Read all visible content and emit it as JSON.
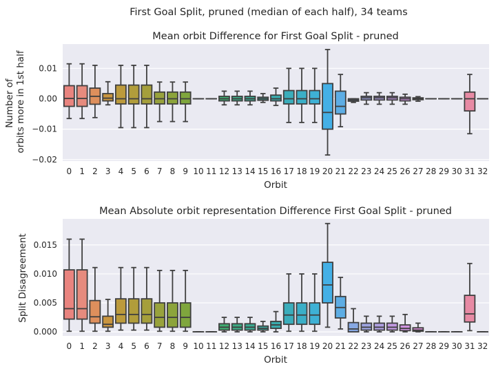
{
  "figure": {
    "suptitle": "First Goal Split, pruned (median of each half), 34 teams"
  },
  "palette": [
    "#e9847f",
    "#e2887a",
    "#d98e58",
    "#c5953f",
    "#b89a3c",
    "#ac9f3b",
    "#a09e3f",
    "#959f3d",
    "#8aa43b",
    "#7fa63d",
    "#67a945",
    "#4aac58",
    "#3aac72",
    "#3aaa85",
    "#3aaa95",
    "#3aa9a4",
    "#3bac ",
    "#3aadb8",
    "#3aaec3",
    "#3bb2d3",
    "#41b1e6",
    "#5eaee4",
    "#8aa7e2",
    "#a0a4e1",
    "#b39fe1",
    "#c49ae2",
    "#d192e1",
    "#dd8bde",
    "#e386ce",
    "#e38abf"
  ],
  "chart_data": [
    {
      "type": "box",
      "title": "Mean orbit Difference for First Goal Split - pruned",
      "xlabel": "Orbit",
      "ylabel": "Number of\norbits more in 1st half",
      "ylim": [
        -0.0205,
        0.018
      ],
      "yticks": [
        0.01,
        0.0,
        -0.01,
        -0.02
      ],
      "yticklabels": [
        "0.01",
        "0.00",
        "−0.01",
        "−0.02"
      ],
      "grid": true,
      "categories": [
        "0",
        "1",
        "2",
        "3",
        "4",
        "5",
        "6",
        "7",
        "8",
        "9",
        "10",
        "11",
        "12",
        "13",
        "14",
        "15",
        "16",
        "17",
        "18",
        "19",
        "20",
        "21",
        "22",
        "23",
        "24",
        "25",
        "26",
        "27",
        "28",
        "29",
        "30",
        "31",
        "32"
      ],
      "boxes": [
        {
          "wlo": -0.0065,
          "q1": -0.0025,
          "med": 0.0001,
          "q3": 0.0043,
          "whi": 0.0115
        },
        {
          "wlo": -0.0065,
          "q1": -0.0025,
          "med": 0.0001,
          "q3": 0.0043,
          "whi": 0.0115
        },
        {
          "wlo": -0.0062,
          "q1": -0.0018,
          "med": 0.0008,
          "q3": 0.0035,
          "whi": 0.011
        },
        {
          "wlo": -0.002,
          "q1": -0.0007,
          "med": 0.0002,
          "q3": 0.0017,
          "whi": 0.0056
        },
        {
          "wlo": -0.0095,
          "q1": -0.0017,
          "med": 0.0,
          "q3": 0.0045,
          "whi": 0.011
        },
        {
          "wlo": -0.0095,
          "q1": -0.0017,
          "med": 0.0,
          "q3": 0.0045,
          "whi": 0.011
        },
        {
          "wlo": -0.0095,
          "q1": -0.0017,
          "med": 0.0,
          "q3": 0.0045,
          "whi": 0.011
        },
        {
          "wlo": -0.0075,
          "q1": -0.0017,
          "med": 0.0,
          "q3": 0.0022,
          "whi": 0.0055
        },
        {
          "wlo": -0.0075,
          "q1": -0.0017,
          "med": 0.0,
          "q3": 0.0022,
          "whi": 0.0055
        },
        {
          "wlo": -0.0075,
          "q1": -0.0017,
          "med": 0.0,
          "q3": 0.0022,
          "whi": 0.0055
        },
        {
          "wlo": 0.0,
          "q1": 0.0,
          "med": 0.0,
          "q3": 0.0,
          "whi": 0.0
        },
        {
          "wlo": 0.0,
          "q1": 0.0,
          "med": 0.0,
          "q3": 0.0,
          "whi": 0.0
        },
        {
          "wlo": -0.002,
          "q1": -0.0007,
          "med": 0.0,
          "q3": 0.0008,
          "whi": 0.0025
        },
        {
          "wlo": -0.002,
          "q1": -0.0007,
          "med": 0.0,
          "q3": 0.0008,
          "whi": 0.0025
        },
        {
          "wlo": -0.002,
          "q1": -0.0007,
          "med": 0.0,
          "q3": 0.0008,
          "whi": 0.0025
        },
        {
          "wlo": -0.0012,
          "q1": -0.0005,
          "med": 0.0,
          "q3": 0.0005,
          "whi": 0.0017
        },
        {
          "wlo": -0.0022,
          "q1": -0.0007,
          "med": 0.0,
          "q3": 0.0012,
          "whi": 0.0035
        },
        {
          "wlo": -0.0078,
          "q1": -0.0017,
          "med": 0.0,
          "q3": 0.0027,
          "whi": 0.01
        },
        {
          "wlo": -0.0078,
          "q1": -0.0017,
          "med": 0.0,
          "q3": 0.0027,
          "whi": 0.01
        },
        {
          "wlo": -0.0078,
          "q1": -0.0017,
          "med": 0.0,
          "q3": 0.0027,
          "whi": 0.01
        },
        {
          "wlo": -0.0185,
          "q1": -0.01,
          "med": -0.0045,
          "q3": 0.005,
          "whi": 0.0162
        },
        {
          "wlo": -0.0092,
          "q1": -0.005,
          "med": -0.0025,
          "q3": 0.0025,
          "whi": 0.008
        },
        {
          "wlo": -0.0012,
          "q1": -0.0008,
          "med": -0.0004,
          "q3": 0.0,
          "whi": 0.0
        },
        {
          "wlo": -0.0018,
          "q1": -0.0004,
          "med": 0.0003,
          "q3": 0.0008,
          "whi": 0.002
        },
        {
          "wlo": -0.0018,
          "q1": -0.0004,
          "med": 0.0003,
          "q3": 0.0008,
          "whi": 0.002
        },
        {
          "wlo": -0.0018,
          "q1": -0.0004,
          "med": 0.0003,
          "q3": 0.0008,
          "whi": 0.002
        },
        {
          "wlo": -0.0018,
          "q1": -0.0007,
          "med": 0.0,
          "q3": 0.0005,
          "whi": 0.0015
        },
        {
          "wlo": -0.0008,
          "q1": -0.0003,
          "med": 0.0,
          "q3": 0.0003,
          "whi": 0.0007
        },
        {
          "wlo": 0.0,
          "q1": 0.0,
          "med": 0.0,
          "q3": 0.0,
          "whi": 0.0
        },
        {
          "wlo": 0.0,
          "q1": 0.0,
          "med": 0.0,
          "q3": 0.0,
          "whi": 0.0
        },
        {
          "wlo": 0.0,
          "q1": 0.0,
          "med": 0.0,
          "q3": 0.0,
          "whi": 0.0
        },
        {
          "wlo": -0.0115,
          "q1": -0.004,
          "med": 0.0,
          "q3": 0.0022,
          "whi": 0.008
        },
        {
          "wlo": 0.0,
          "q1": 0.0,
          "med": 0.0,
          "q3": 0.0,
          "whi": 0.0
        }
      ]
    },
    {
      "type": "box",
      "title": "Mean Absolute orbit representation Difference First Goal Split - pruned",
      "xlabel": "Orbit",
      "ylabel": "Split Disagreement",
      "ylim": [
        -0.0007,
        0.0195
      ],
      "yticks": [
        0.015,
        0.01,
        0.005,
        0.0
      ],
      "yticklabels": [
        "0.015",
        "0.010",
        "0.005",
        "0.000"
      ],
      "grid": true,
      "categories": [
        "0",
        "1",
        "2",
        "3",
        "4",
        "5",
        "6",
        "7",
        "8",
        "9",
        "10",
        "11",
        "12",
        "13",
        "14",
        "15",
        "16",
        "17",
        "18",
        "19",
        "20",
        "21",
        "22",
        "23",
        "24",
        "25",
        "26",
        "27",
        "28",
        "29",
        "30",
        "31",
        "32"
      ],
      "boxes": [
        {
          "wlo": 0.0001,
          "q1": 0.0022,
          "med": 0.004,
          "q3": 0.0107,
          "whi": 0.016
        },
        {
          "wlo": 0.0001,
          "q1": 0.0022,
          "med": 0.004,
          "q3": 0.0107,
          "whi": 0.016
        },
        {
          "wlo": 0.0001,
          "q1": 0.0015,
          "med": 0.0026,
          "q3": 0.0054,
          "whi": 0.0111
        },
        {
          "wlo": 0.0001,
          "q1": 0.0008,
          "med": 0.0013,
          "q3": 0.0027,
          "whi": 0.0056
        },
        {
          "wlo": 0.0003,
          "q1": 0.0015,
          "med": 0.003,
          "q3": 0.0057,
          "whi": 0.0111
        },
        {
          "wlo": 0.0003,
          "q1": 0.0015,
          "med": 0.003,
          "q3": 0.0057,
          "whi": 0.0111
        },
        {
          "wlo": 0.0003,
          "q1": 0.0015,
          "med": 0.003,
          "q3": 0.0057,
          "whi": 0.0111
        },
        {
          "wlo": 0.0001,
          "q1": 0.0008,
          "med": 0.0025,
          "q3": 0.005,
          "whi": 0.0106
        },
        {
          "wlo": 0.0001,
          "q1": 0.0008,
          "med": 0.0025,
          "q3": 0.005,
          "whi": 0.0106
        },
        {
          "wlo": 0.0001,
          "q1": 0.0008,
          "med": 0.0025,
          "q3": 0.005,
          "whi": 0.0106
        },
        {
          "wlo": 0.0,
          "q1": 0.0,
          "med": 0.0,
          "q3": 0.0,
          "whi": 0.0
        },
        {
          "wlo": 0.0,
          "q1": 0.0,
          "med": 0.0,
          "q3": 0.0,
          "whi": 0.0
        },
        {
          "wlo": 0.0,
          "q1": 0.0003,
          "med": 0.0008,
          "q3": 0.0014,
          "whi": 0.0025
        },
        {
          "wlo": 0.0,
          "q1": 0.0003,
          "med": 0.0008,
          "q3": 0.0014,
          "whi": 0.0025
        },
        {
          "wlo": 0.0,
          "q1": 0.0003,
          "med": 0.0008,
          "q3": 0.0014,
          "whi": 0.0025
        },
        {
          "wlo": 0.0,
          "q1": 0.0003,
          "med": 0.0006,
          "q3": 0.001,
          "whi": 0.0018
        },
        {
          "wlo": 0.0,
          "q1": 0.0006,
          "med": 0.0012,
          "q3": 0.0018,
          "whi": 0.0035
        },
        {
          "wlo": 0.0001,
          "q1": 0.0013,
          "med": 0.0029,
          "q3": 0.005,
          "whi": 0.01
        },
        {
          "wlo": 0.0001,
          "q1": 0.0013,
          "med": 0.0029,
          "q3": 0.005,
          "whi": 0.01
        },
        {
          "wlo": 0.0001,
          "q1": 0.0013,
          "med": 0.0029,
          "q3": 0.005,
          "whi": 0.01
        },
        {
          "wlo": 0.0008,
          "q1": 0.005,
          "med": 0.0081,
          "q3": 0.012,
          "whi": 0.0187
        },
        {
          "wlo": 0.0005,
          "q1": 0.0024,
          "med": 0.0042,
          "q3": 0.0061,
          "whi": 0.0094
        },
        {
          "wlo": 0.0,
          "q1": 0.0,
          "med": 0.0005,
          "q3": 0.0016,
          "whi": 0.004
        },
        {
          "wlo": 0.0,
          "q1": 0.0003,
          "med": 0.0008,
          "q3": 0.0015,
          "whi": 0.0027
        },
        {
          "wlo": 0.0,
          "q1": 0.0003,
          "med": 0.0008,
          "q3": 0.0015,
          "whi": 0.0027
        },
        {
          "wlo": 0.0,
          "q1": 0.0003,
          "med": 0.0008,
          "q3": 0.0015,
          "whi": 0.0027
        },
        {
          "wlo": 0.0,
          "q1": 0.0002,
          "med": 0.0006,
          "q3": 0.0012,
          "whi": 0.003
        },
        {
          "wlo": 0.0,
          "q1": 0.0001,
          "med": 0.0003,
          "q3": 0.0007,
          "whi": 0.0015
        },
        {
          "wlo": 0.0,
          "q1": 0.0,
          "med": 0.0,
          "q3": 0.0,
          "whi": 0.0
        },
        {
          "wlo": 0.0,
          "q1": 0.0,
          "med": 0.0,
          "q3": 0.0,
          "whi": 0.0
        },
        {
          "wlo": 0.0,
          "q1": 0.0,
          "med": 0.0,
          "q3": 0.0,
          "whi": 0.0
        },
        {
          "wlo": 0.0002,
          "q1": 0.0017,
          "med": 0.0031,
          "q3": 0.0063,
          "whi": 0.0118
        },
        {
          "wlo": 0.0,
          "q1": 0.0,
          "med": 0.0,
          "q3": 0.0,
          "whi": 0.0
        }
      ]
    }
  ]
}
